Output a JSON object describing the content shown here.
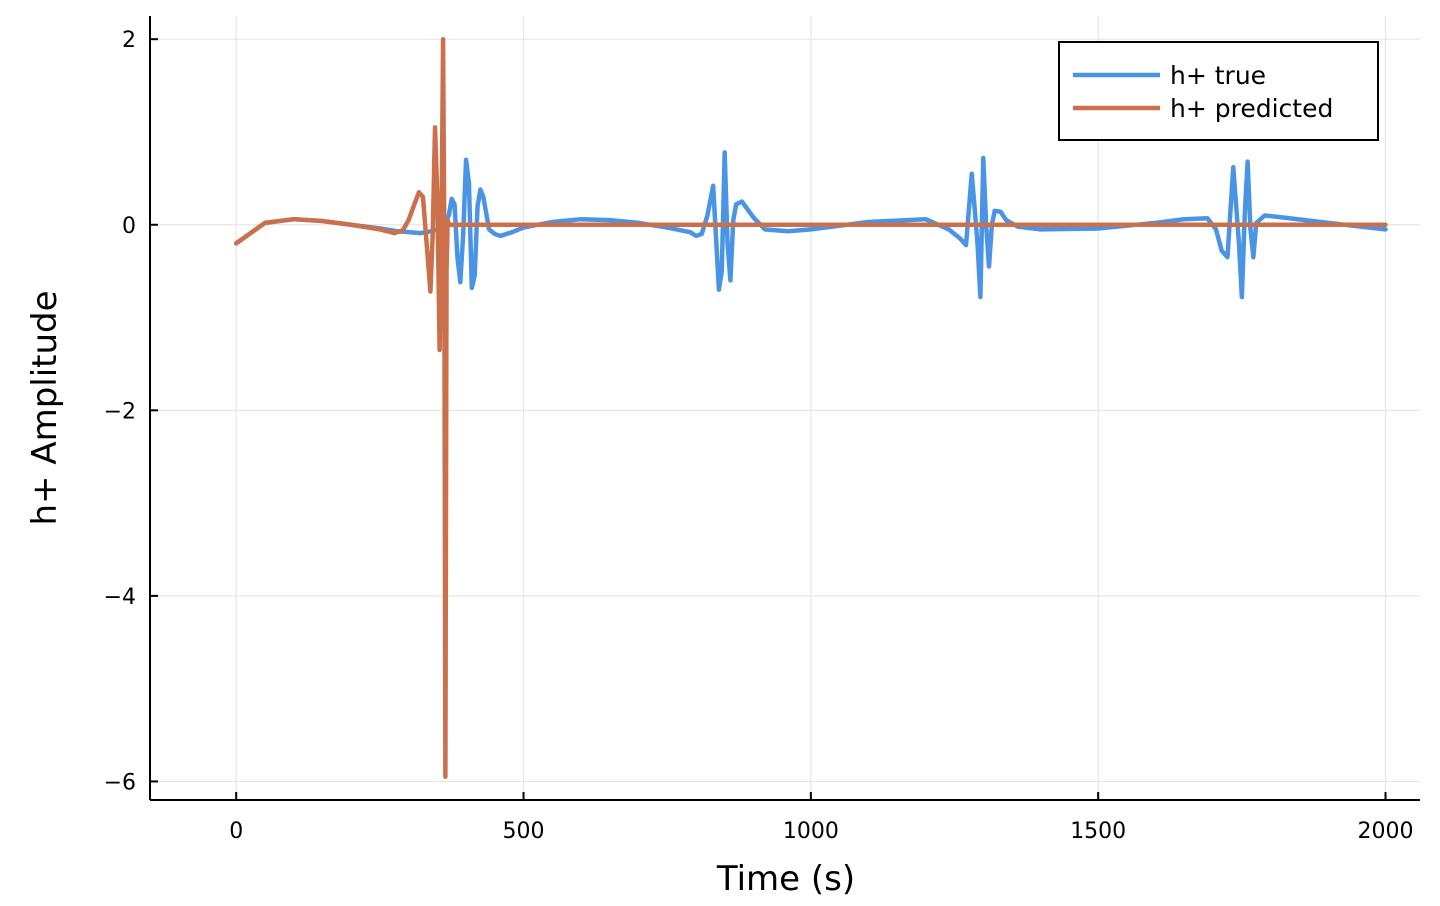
{
  "chart_data": {
    "type": "line",
    "title": "",
    "xlabel": "Time (s)",
    "ylabel": "h+ Amplitude",
    "xlim": [
      -150,
      2060
    ],
    "ylim": [
      -6.2,
      2.25
    ],
    "xticks": [
      0,
      500,
      1000,
      1500,
      2000
    ],
    "xtick_labels": [
      "0",
      "500",
      "1000",
      "1500",
      "2000"
    ],
    "yticks": [
      2,
      0,
      -2,
      -4,
      -6
    ],
    "ytick_labels": [
      "2",
      "0",
      "−2",
      "−4",
      "−6"
    ],
    "grid": true,
    "legend_position": "top-right",
    "series": [
      {
        "name": "h+ true",
        "color": "#4a94e6",
        "x": [
          0,
          50,
          100,
          150,
          200,
          250,
          280,
          300,
          320,
          340,
          350,
          360,
          370,
          375,
          380,
          385,
          390,
          395,
          400,
          405,
          410,
          415,
          420,
          425,
          430,
          440,
          450,
          460,
          480,
          500,
          550,
          600,
          650,
          700,
          750,
          790,
          800,
          810,
          820,
          830,
          840,
          845,
          850,
          855,
          860,
          865,
          870,
          880,
          900,
          920,
          960,
          1000,
          1100,
          1200,
          1240,
          1260,
          1270,
          1280,
          1290,
          1295,
          1300,
          1305,
          1310,
          1315,
          1320,
          1330,
          1340,
          1360,
          1400,
          1500,
          1600,
          1650,
          1690,
          1705,
          1715,
          1725,
          1735,
          1745,
          1750,
          1755,
          1760,
          1765,
          1770,
          1775,
          1790,
          1820,
          1900,
          2000
        ],
        "y": [
          -0.2,
          0.02,
          0.06,
          0.04,
          0.0,
          -0.04,
          -0.07,
          -0.08,
          -0.09,
          -0.07,
          -0.05,
          -0.02,
          0.1,
          0.28,
          0.22,
          -0.35,
          -0.62,
          -0.1,
          0.7,
          0.45,
          -0.68,
          -0.55,
          0.2,
          0.38,
          0.3,
          -0.05,
          -0.1,
          -0.12,
          -0.08,
          -0.03,
          0.03,
          0.06,
          0.05,
          0.02,
          -0.03,
          -0.08,
          -0.12,
          -0.1,
          0.1,
          0.42,
          -0.7,
          -0.5,
          0.78,
          -0.2,
          -0.6,
          0.05,
          0.22,
          0.25,
          0.08,
          -0.05,
          -0.07,
          -0.05,
          0.03,
          0.06,
          -0.05,
          -0.15,
          -0.22,
          0.55,
          -0.2,
          -0.78,
          0.72,
          0.0,
          -0.45,
          0.0,
          0.15,
          0.14,
          0.05,
          -0.02,
          -0.05,
          -0.04,
          0.02,
          0.06,
          0.07,
          -0.05,
          -0.28,
          -0.35,
          0.62,
          -0.2,
          -0.78,
          0.1,
          0.68,
          -0.05,
          -0.35,
          0.02,
          0.1,
          0.08,
          0.02,
          -0.05
        ]
      },
      {
        "name": "h+ predicted",
        "color": "#cc704b",
        "x": [
          0,
          50,
          100,
          150,
          200,
          250,
          275,
          290,
          300,
          310,
          318,
          325,
          332,
          338,
          342,
          346,
          350,
          354,
          358,
          360,
          362,
          364,
          366,
          368,
          370,
          375,
          400,
          1000,
          2000
        ],
        "y": [
          -0.2,
          0.02,
          0.06,
          0.04,
          0.0,
          -0.05,
          -0.09,
          -0.06,
          0.05,
          0.22,
          0.35,
          0.3,
          -0.25,
          -0.72,
          -0.1,
          1.05,
          0.3,
          -1.35,
          0.5,
          2.0,
          0.0,
          -5.95,
          -0.5,
          0.05,
          0.0,
          0.0,
          0.0,
          0.0,
          0.0
        ]
      }
    ]
  }
}
